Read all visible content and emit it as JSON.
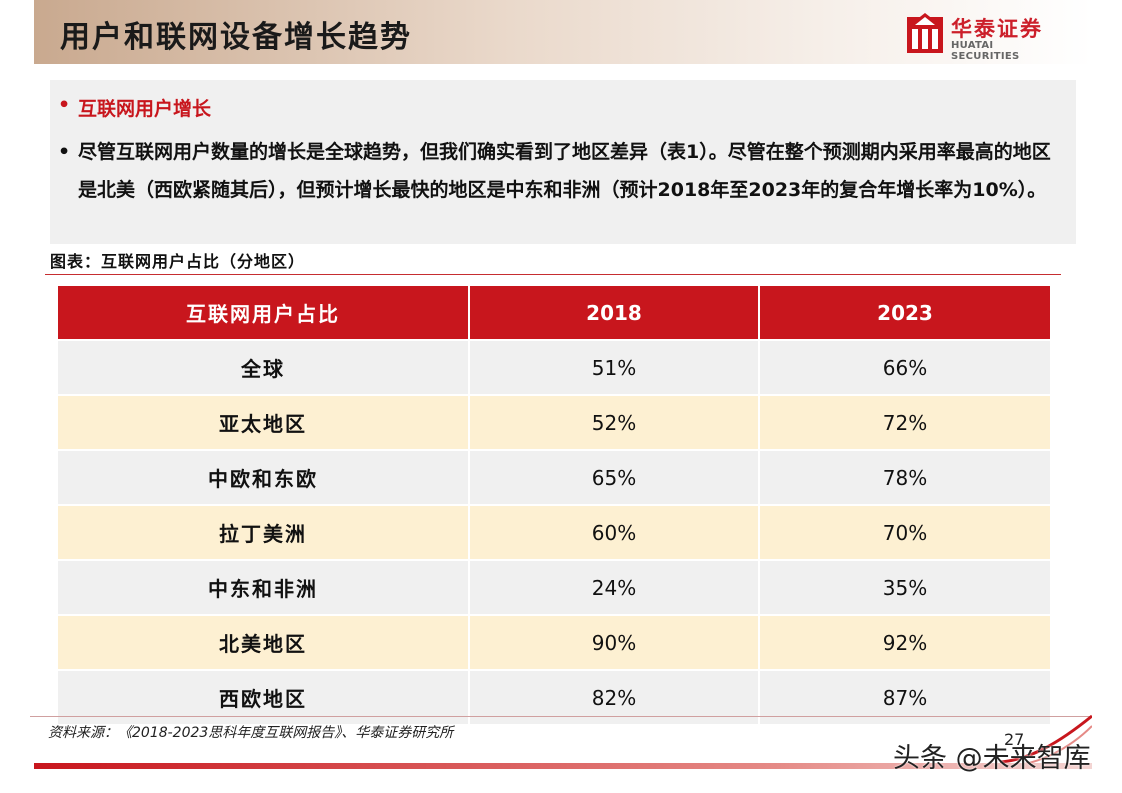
{
  "header": {
    "title": "用户和联网设备增长趋势",
    "logo_cn": "华泰证券",
    "logo_en": "HUATAI SECURITIES",
    "brand_color": "#c8161d"
  },
  "bullets": {
    "heading": "互联网用户增长",
    "body": "尽管互联网用户数量的增长是全球趋势，但我们确实看到了地区差异（表1）。尽管在整个预测期内采用率最高的地区是北美（西欧紧随其后），但预计增长最快的地区是中东和非洲（预计2018年至2023年的复合年增长率为10%）。"
  },
  "figure": {
    "caption": "图表：互联网用户占比（分地区）"
  },
  "table": {
    "columns": [
      "互联网用户占比",
      "2018",
      "2023"
    ],
    "rows": [
      {
        "region": "全球",
        "y2018": "51%",
        "y2023": "66%"
      },
      {
        "region": "亚太地区",
        "y2018": "52%",
        "y2023": "72%"
      },
      {
        "region": "中欧和东欧",
        "y2018": "65%",
        "y2023": "78%"
      },
      {
        "region": "拉丁美洲",
        "y2018": "60%",
        "y2023": "70%"
      },
      {
        "region": "中东和非洲",
        "y2018": "24%",
        "y2023": "35%"
      },
      {
        "region": "北美地区",
        "y2018": "90%",
        "y2023": "92%"
      },
      {
        "region": "西欧地区",
        "y2018": "82%",
        "y2023": "87%"
      }
    ]
  },
  "footer": {
    "source": "资料来源：《2018-2023思科年度互联网报告》、华泰证券研究所",
    "page_number": "27",
    "watermark": "头条 @未来智库"
  }
}
